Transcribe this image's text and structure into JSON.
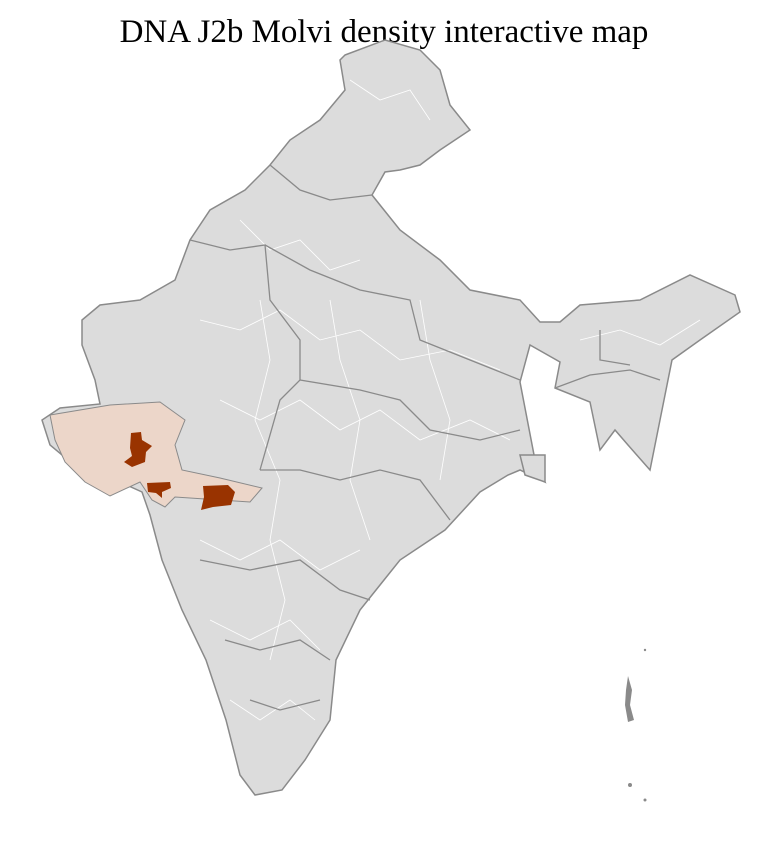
{
  "title": "DNA J2b Molvi density interactive map",
  "colors": {
    "land": "#dcdcdc",
    "state_border": "#8a8a8a",
    "district_border": "#ffffff",
    "low_density": "#ecd6c9",
    "high_density": "#993300"
  },
  "legend": null
}
